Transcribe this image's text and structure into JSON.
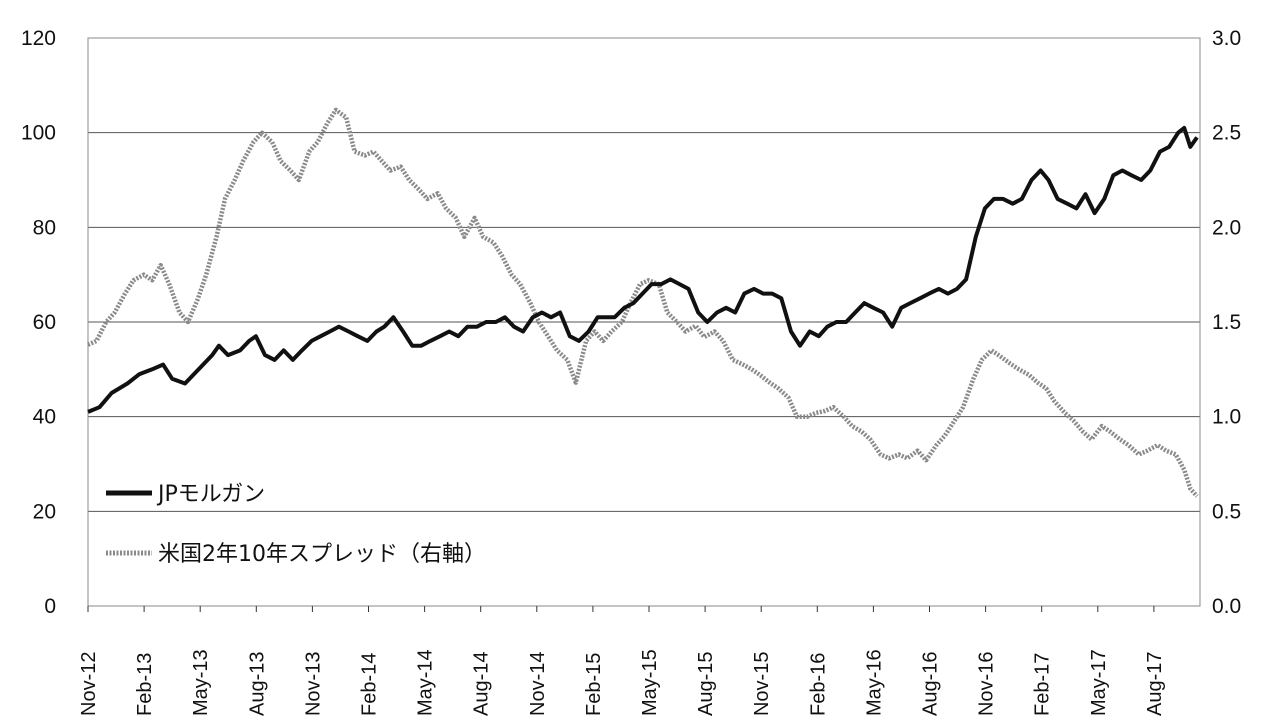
{
  "chart_data": {
    "type": "line",
    "title": "",
    "x_ticks": [
      "Nov-12",
      "Feb-13",
      "May-13",
      "Aug-13",
      "Nov-13",
      "Feb-14",
      "May-14",
      "Aug-14",
      "Nov-14",
      "Feb-15",
      "May-15",
      "Aug-15",
      "Nov-15",
      "Feb-16",
      "May-16",
      "Aug-16",
      "Nov-16",
      "Feb-17",
      "May-17",
      "Aug-17"
    ],
    "y_left": {
      "ticks": [
        "0",
        "20",
        "40",
        "60",
        "80",
        "100",
        "120"
      ],
      "range": [
        0,
        120
      ]
    },
    "y_right": {
      "ticks": [
        "0.0",
        "0.5",
        "1.0",
        "1.5",
        "2.0",
        "2.5",
        "3.0"
      ],
      "range": [
        0,
        3.0
      ]
    },
    "grid": "horizontal",
    "legend_placement": "bottom-left",
    "series": [
      {
        "name": "JPモルガン",
        "axis": "left",
        "color": "#111111",
        "points": [
          [
            "2012-11-01",
            41
          ],
          [
            "2012-11-20",
            42
          ],
          [
            "2012-12-10",
            45
          ],
          [
            "2013-01-05",
            47
          ],
          [
            "2013-01-25",
            49
          ],
          [
            "2013-02-15",
            50
          ],
          [
            "2013-03-05",
            51
          ],
          [
            "2013-03-20",
            48
          ],
          [
            "2013-04-10",
            47
          ],
          [
            "2013-04-25",
            49
          ],
          [
            "2013-05-10",
            51
          ],
          [
            "2013-05-25",
            53
          ],
          [
            "2013-06-05",
            55
          ],
          [
            "2013-06-20",
            53
          ],
          [
            "2013-07-10",
            54
          ],
          [
            "2013-07-25",
            56
          ],
          [
            "2013-08-05",
            57
          ],
          [
            "2013-08-20",
            53
          ],
          [
            "2013-09-05",
            52
          ],
          [
            "2013-09-20",
            54
          ],
          [
            "2013-10-05",
            52
          ],
          [
            "2013-10-20",
            54
          ],
          [
            "2013-11-05",
            56
          ],
          [
            "2013-11-20",
            57
          ],
          [
            "2013-12-05",
            58
          ],
          [
            "2013-12-20",
            59
          ],
          [
            "2014-01-05",
            58
          ],
          [
            "2014-01-20",
            57
          ],
          [
            "2014-02-05",
            56
          ],
          [
            "2014-02-20",
            58
          ],
          [
            "2014-03-05",
            59
          ],
          [
            "2014-03-20",
            61
          ],
          [
            "2014-04-05",
            58
          ],
          [
            "2014-04-20",
            55
          ],
          [
            "2014-05-05",
            55
          ],
          [
            "2014-05-20",
            56
          ],
          [
            "2014-06-05",
            57
          ],
          [
            "2014-06-20",
            58
          ],
          [
            "2014-07-05",
            57
          ],
          [
            "2014-07-20",
            59
          ],
          [
            "2014-08-05",
            59
          ],
          [
            "2014-08-20",
            60
          ],
          [
            "2014-09-05",
            60
          ],
          [
            "2014-09-20",
            61
          ],
          [
            "2014-10-05",
            59
          ],
          [
            "2014-10-20",
            58
          ],
          [
            "2014-11-05",
            61
          ],
          [
            "2014-11-20",
            62
          ],
          [
            "2014-12-05",
            61
          ],
          [
            "2014-12-20",
            62
          ],
          [
            "2015-01-05",
            57
          ],
          [
            "2015-01-20",
            56
          ],
          [
            "2015-02-05",
            58
          ],
          [
            "2015-02-20",
            61
          ],
          [
            "2015-03-05",
            61
          ],
          [
            "2015-03-20",
            61
          ],
          [
            "2015-04-05",
            63
          ],
          [
            "2015-04-20",
            64
          ],
          [
            "2015-05-05",
            66
          ],
          [
            "2015-05-20",
            68
          ],
          [
            "2015-06-05",
            68
          ],
          [
            "2015-06-20",
            69
          ],
          [
            "2015-07-05",
            68
          ],
          [
            "2015-07-20",
            67
          ],
          [
            "2015-08-05",
            62
          ],
          [
            "2015-08-20",
            60
          ],
          [
            "2015-09-05",
            62
          ],
          [
            "2015-09-20",
            63
          ],
          [
            "2015-10-05",
            62
          ],
          [
            "2015-10-20",
            66
          ],
          [
            "2015-11-05",
            67
          ],
          [
            "2015-11-20",
            66
          ],
          [
            "2015-12-05",
            66
          ],
          [
            "2015-12-20",
            65
          ],
          [
            "2016-01-05",
            58
          ],
          [
            "2016-01-20",
            55
          ],
          [
            "2016-02-05",
            58
          ],
          [
            "2016-02-20",
            57
          ],
          [
            "2016-03-05",
            59
          ],
          [
            "2016-03-20",
            60
          ],
          [
            "2016-04-05",
            60
          ],
          [
            "2016-04-20",
            62
          ],
          [
            "2016-05-05",
            64
          ],
          [
            "2016-05-20",
            63
          ],
          [
            "2016-06-05",
            62
          ],
          [
            "2016-06-20",
            59
          ],
          [
            "2016-07-05",
            63
          ],
          [
            "2016-07-20",
            64
          ],
          [
            "2016-08-05",
            65
          ],
          [
            "2016-08-20",
            66
          ],
          [
            "2016-09-05",
            67
          ],
          [
            "2016-09-20",
            66
          ],
          [
            "2016-10-05",
            67
          ],
          [
            "2016-10-20",
            69
          ],
          [
            "2016-11-05",
            78
          ],
          [
            "2016-11-20",
            84
          ],
          [
            "2016-12-05",
            86
          ],
          [
            "2016-12-20",
            86
          ],
          [
            "2017-01-05",
            85
          ],
          [
            "2017-01-20",
            86
          ],
          [
            "2017-02-05",
            90
          ],
          [
            "2017-02-20",
            92
          ],
          [
            "2017-03-05",
            90
          ],
          [
            "2017-03-20",
            86
          ],
          [
            "2017-04-05",
            85
          ],
          [
            "2017-04-20",
            84
          ],
          [
            "2017-05-05",
            87
          ],
          [
            "2017-05-20",
            83
          ],
          [
            "2017-06-05",
            86
          ],
          [
            "2017-06-20",
            91
          ],
          [
            "2017-07-05",
            92
          ],
          [
            "2017-07-20",
            91
          ],
          [
            "2017-08-05",
            90
          ],
          [
            "2017-08-20",
            92
          ],
          [
            "2017-09-05",
            96
          ],
          [
            "2017-09-20",
            97
          ],
          [
            "2017-10-05",
            100
          ],
          [
            "2017-10-15",
            101
          ],
          [
            "2017-10-25",
            97
          ],
          [
            "2017-11-05",
            99
          ]
        ]
      },
      {
        "name": "米国2年10年スプレッド（右軸）",
        "axis": "right",
        "color": "#8a8a8a",
        "points": [
          [
            "2012-11-01",
            1.38
          ],
          [
            "2012-11-15",
            1.4
          ],
          [
            "2012-12-01",
            1.5
          ],
          [
            "2012-12-15",
            1.55
          ],
          [
            "2013-01-01",
            1.65
          ],
          [
            "2013-01-15",
            1.72
          ],
          [
            "2013-02-01",
            1.75
          ],
          [
            "2013-02-15",
            1.72
          ],
          [
            "2013-03-01",
            1.8
          ],
          [
            "2013-03-15",
            1.7
          ],
          [
            "2013-04-01",
            1.55
          ],
          [
            "2013-04-15",
            1.5
          ],
          [
            "2013-05-01",
            1.62
          ],
          [
            "2013-05-15",
            1.75
          ],
          [
            "2013-06-01",
            1.95
          ],
          [
            "2013-06-15",
            2.15
          ],
          [
            "2013-07-01",
            2.25
          ],
          [
            "2013-07-15",
            2.35
          ],
          [
            "2013-08-01",
            2.45
          ],
          [
            "2013-08-15",
            2.5
          ],
          [
            "2013-09-01",
            2.45
          ],
          [
            "2013-09-15",
            2.35
          ],
          [
            "2013-10-01",
            2.3
          ],
          [
            "2013-10-15",
            2.25
          ],
          [
            "2013-11-01",
            2.4
          ],
          [
            "2013-11-15",
            2.45
          ],
          [
            "2013-12-01",
            2.55
          ],
          [
            "2013-12-15",
            2.62
          ],
          [
            "2014-01-01",
            2.58
          ],
          [
            "2014-01-15",
            2.4
          ],
          [
            "2014-02-01",
            2.38
          ],
          [
            "2014-02-15",
            2.4
          ],
          [
            "2014-03-01",
            2.35
          ],
          [
            "2014-03-15",
            2.3
          ],
          [
            "2014-04-01",
            2.32
          ],
          [
            "2014-04-15",
            2.25
          ],
          [
            "2014-05-01",
            2.2
          ],
          [
            "2014-05-15",
            2.15
          ],
          [
            "2014-06-01",
            2.18
          ],
          [
            "2014-06-15",
            2.1
          ],
          [
            "2014-07-01",
            2.05
          ],
          [
            "2014-07-15",
            1.95
          ],
          [
            "2014-08-01",
            2.05
          ],
          [
            "2014-08-15",
            1.95
          ],
          [
            "2014-09-01",
            1.92
          ],
          [
            "2014-09-15",
            1.85
          ],
          [
            "2014-10-01",
            1.75
          ],
          [
            "2014-10-15",
            1.7
          ],
          [
            "2014-11-01",
            1.6
          ],
          [
            "2014-11-15",
            1.5
          ],
          [
            "2014-12-01",
            1.42
          ],
          [
            "2014-12-15",
            1.35
          ],
          [
            "2015-01-01",
            1.3
          ],
          [
            "2015-01-15",
            1.18
          ],
          [
            "2015-02-01",
            1.4
          ],
          [
            "2015-02-15",
            1.45
          ],
          [
            "2015-03-01",
            1.4
          ],
          [
            "2015-03-15",
            1.45
          ],
          [
            "2015-04-01",
            1.5
          ],
          [
            "2015-04-15",
            1.6
          ],
          [
            "2015-05-01",
            1.7
          ],
          [
            "2015-05-15",
            1.72
          ],
          [
            "2015-06-01",
            1.7
          ],
          [
            "2015-06-15",
            1.55
          ],
          [
            "2015-07-01",
            1.5
          ],
          [
            "2015-07-15",
            1.45
          ],
          [
            "2015-08-01",
            1.48
          ],
          [
            "2015-08-15",
            1.42
          ],
          [
            "2015-09-01",
            1.45
          ],
          [
            "2015-09-15",
            1.4
          ],
          [
            "2015-10-01",
            1.3
          ],
          [
            "2015-10-15",
            1.28
          ],
          [
            "2015-11-01",
            1.25
          ],
          [
            "2015-11-15",
            1.22
          ],
          [
            "2015-12-01",
            1.18
          ],
          [
            "2015-12-15",
            1.15
          ],
          [
            "2016-01-01",
            1.1
          ],
          [
            "2016-01-15",
            1.0
          ],
          [
            "2016-02-01",
            1.0
          ],
          [
            "2016-02-15",
            1.02
          ],
          [
            "2016-03-01",
            1.03
          ],
          [
            "2016-03-15",
            1.05
          ],
          [
            "2016-04-01",
            1.0
          ],
          [
            "2016-04-15",
            0.95
          ],
          [
            "2016-05-01",
            0.92
          ],
          [
            "2016-05-15",
            0.88
          ],
          [
            "2016-06-01",
            0.8
          ],
          [
            "2016-06-15",
            0.78
          ],
          [
            "2016-07-01",
            0.8
          ],
          [
            "2016-07-15",
            0.78
          ],
          [
            "2016-08-01",
            0.82
          ],
          [
            "2016-08-15",
            0.77
          ],
          [
            "2016-09-01",
            0.85
          ],
          [
            "2016-09-15",
            0.9
          ],
          [
            "2016-10-01",
            0.98
          ],
          [
            "2016-10-15",
            1.05
          ],
          [
            "2016-11-01",
            1.2
          ],
          [
            "2016-11-15",
            1.3
          ],
          [
            "2016-12-01",
            1.35
          ],
          [
            "2016-12-15",
            1.32
          ],
          [
            "2017-01-01",
            1.28
          ],
          [
            "2017-01-15",
            1.25
          ],
          [
            "2017-02-01",
            1.22
          ],
          [
            "2017-02-15",
            1.18
          ],
          [
            "2017-03-01",
            1.15
          ],
          [
            "2017-03-15",
            1.08
          ],
          [
            "2017-04-01",
            1.02
          ],
          [
            "2017-04-15",
            0.98
          ],
          [
            "2017-05-01",
            0.92
          ],
          [
            "2017-05-15",
            0.88
          ],
          [
            "2017-06-01",
            0.95
          ],
          [
            "2017-06-15",
            0.92
          ],
          [
            "2017-07-01",
            0.88
          ],
          [
            "2017-07-15",
            0.85
          ],
          [
            "2017-08-01",
            0.8
          ],
          [
            "2017-08-15",
            0.82
          ],
          [
            "2017-09-01",
            0.85
          ],
          [
            "2017-09-15",
            0.82
          ],
          [
            "2017-10-01",
            0.8
          ],
          [
            "2017-10-15",
            0.72
          ],
          [
            "2017-10-25",
            0.62
          ],
          [
            "2017-11-05",
            0.58
          ]
        ]
      }
    ]
  }
}
